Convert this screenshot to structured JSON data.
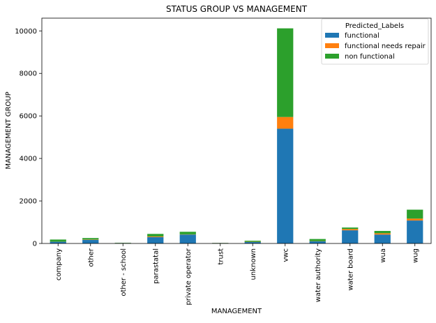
{
  "chart_data": {
    "type": "bar",
    "stacked": true,
    "title": "STATUS GROUP VS MANAGEMENT",
    "xlabel": "MANAGEMENT",
    "ylabel": "MANAGEMENT GROUP",
    "ylim": [
      0,
      10600
    ],
    "yticks": [
      0,
      2000,
      4000,
      6000,
      8000,
      10000
    ],
    "grid": false,
    "legend_position": "top-right",
    "legend_title": "Predicted_Labels",
    "categories": [
      "company",
      "other",
      "other - school",
      "parastatal",
      "private operator",
      "trust",
      "unknown",
      "vwc",
      "water authority",
      "water board",
      "wua",
      "wug"
    ],
    "series": [
      {
        "name": "functional",
        "color": "#1f77b4",
        "values": [
          80,
          170,
          20,
          300,
          420,
          20,
          70,
          5400,
          100,
          620,
          420,
          1080
        ]
      },
      {
        "name": "functional needs repair",
        "color": "#ff7f0e",
        "values": [
          5,
          15,
          5,
          30,
          10,
          5,
          10,
          550,
          10,
          60,
          60,
          90
        ]
      },
      {
        "name": "non functional",
        "color": "#2ca02c",
        "values": [
          100,
          70,
          10,
          120,
          120,
          5,
          50,
          4170,
          100,
          70,
          110,
          420
        ]
      }
    ]
  }
}
